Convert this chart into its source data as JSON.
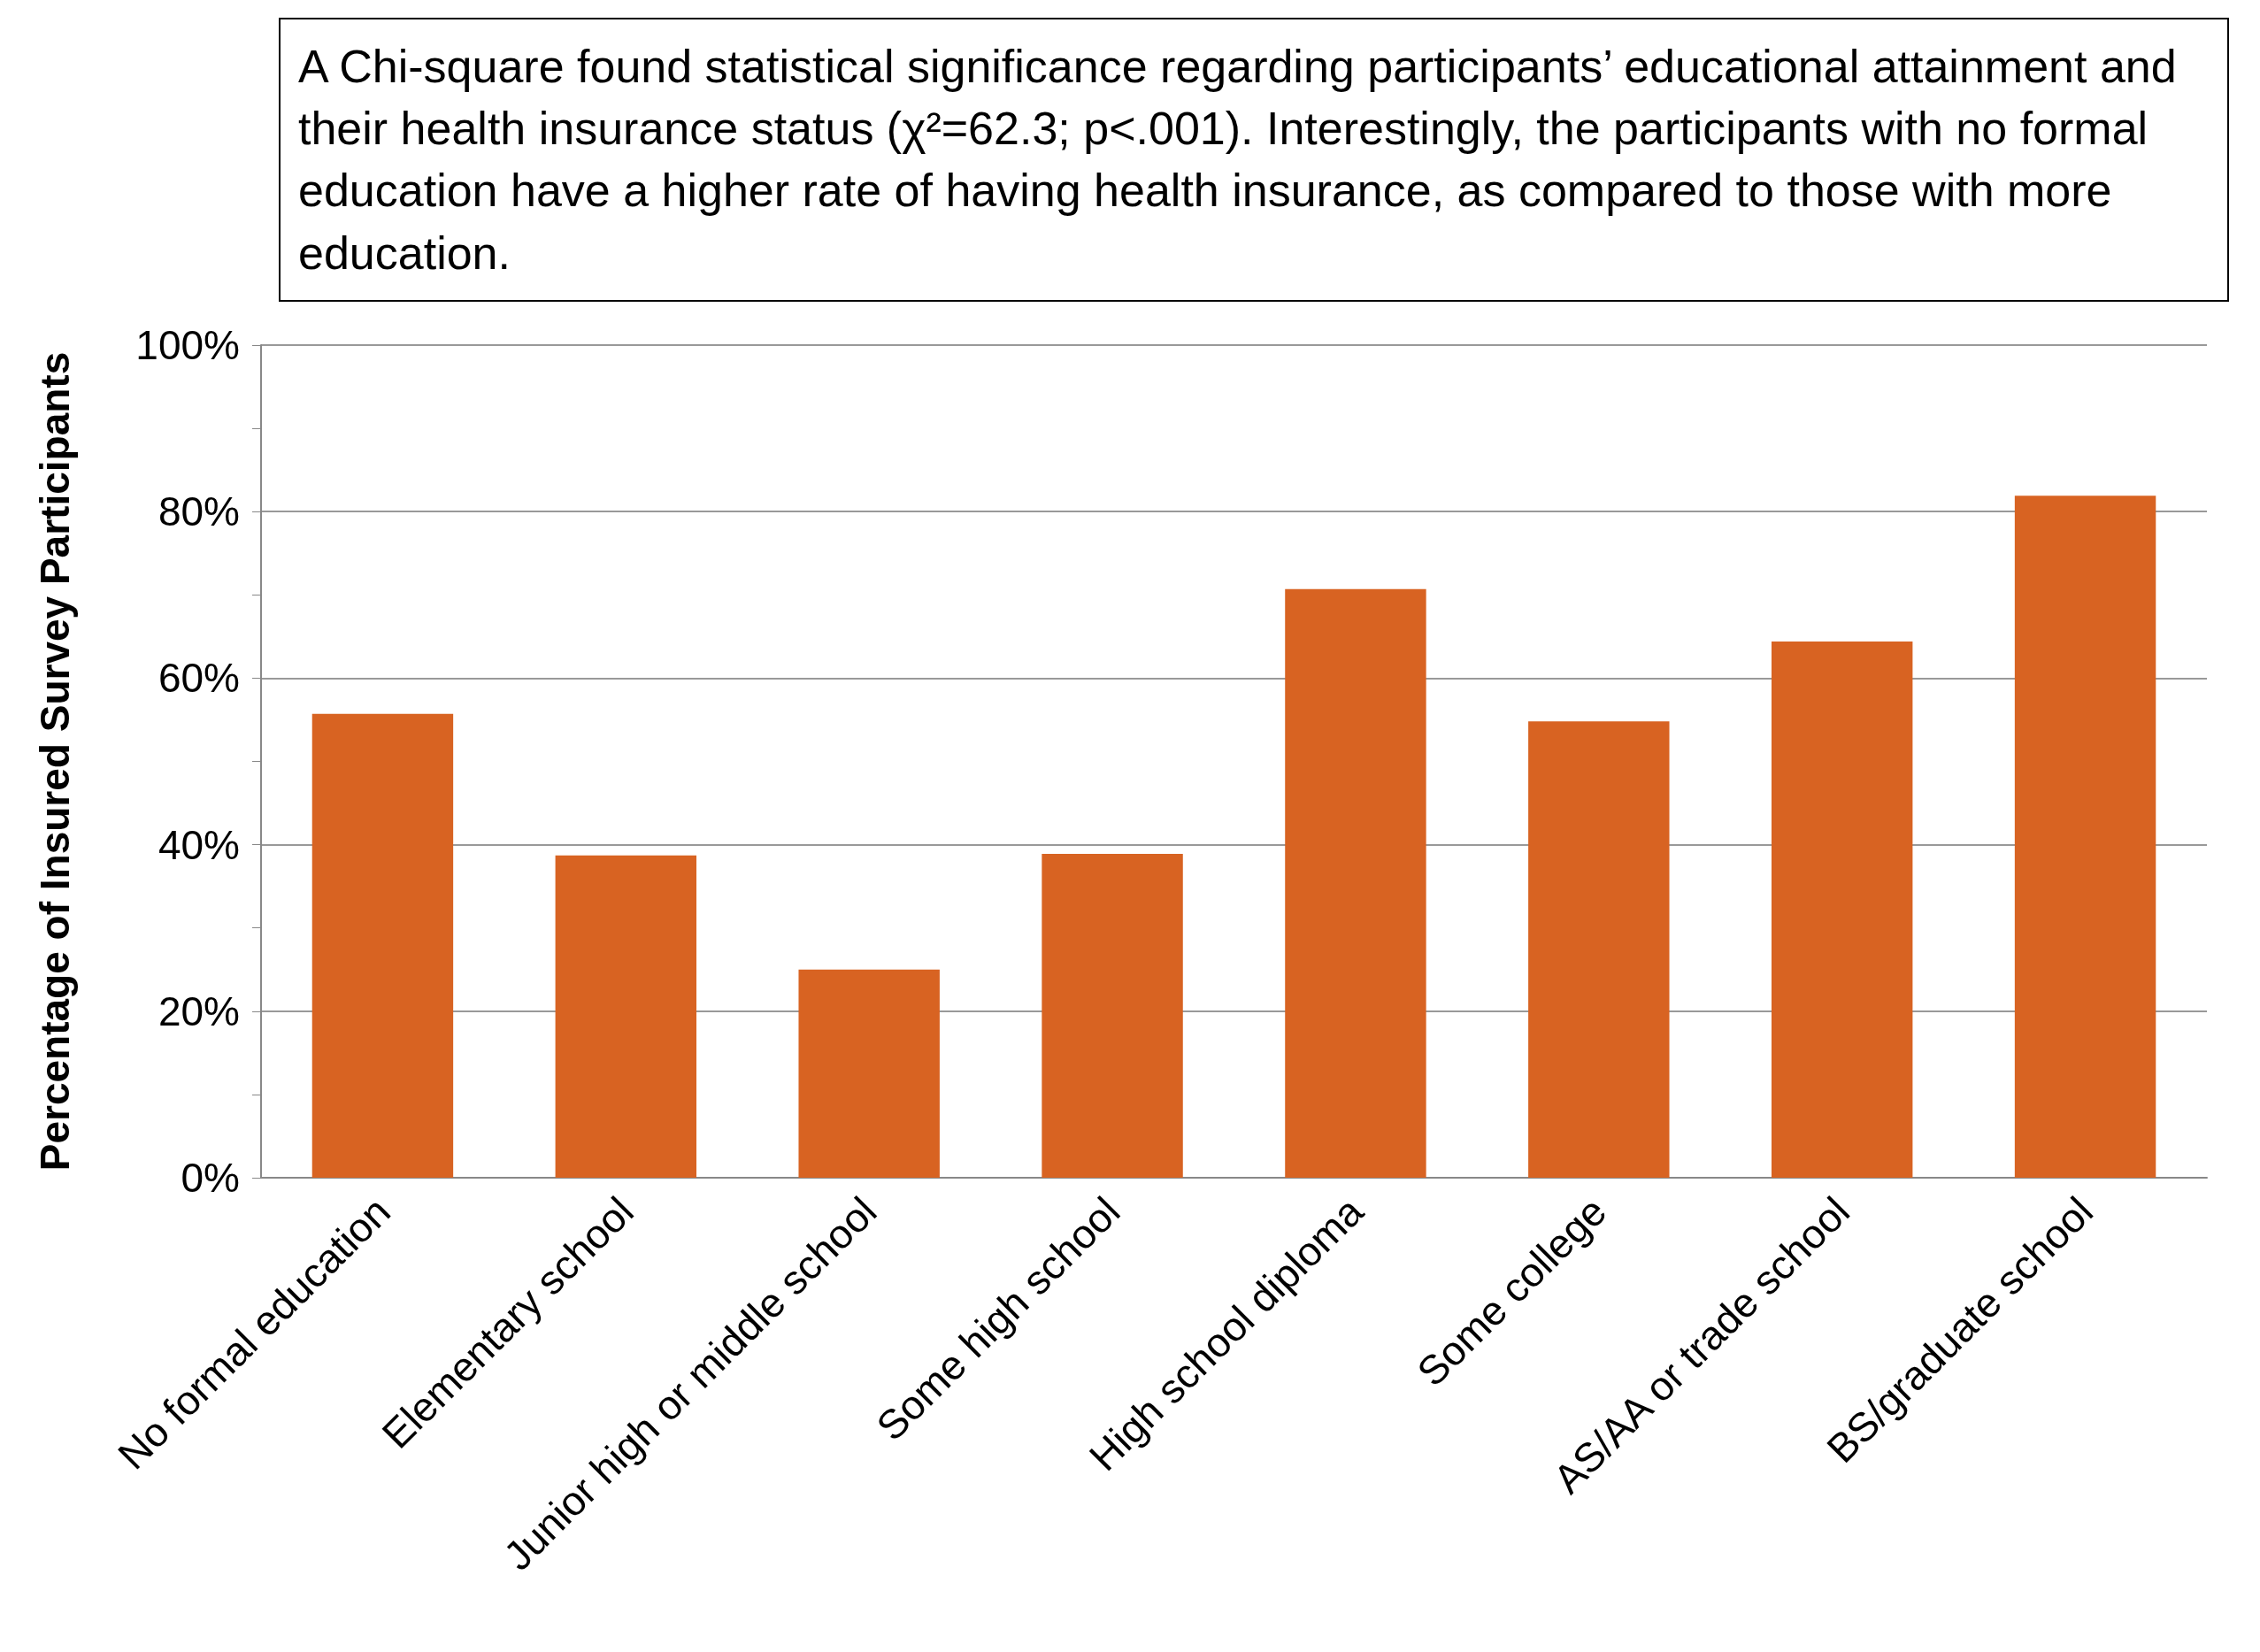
{
  "chart_data": {
    "type": "bar",
    "ylabel": "Percentage of Insured Survey Participants",
    "annotations": [
      "A Chi-square found statistical significance regarding participants’ educational attainment and their health insurance status (χ²=62.3; p<.001).  Interestingly, the participants with no formal education have a higher rate of having health insurance, as compared to those with more education."
    ],
    "categories": [
      "No formal education",
      "Elementary school",
      "Junior high or middle school",
      "Some high school",
      "High school diploma",
      "Some college",
      "AS/AA or trade school",
      "BS/graduate school"
    ],
    "values": [
      55.7,
      38.7,
      25.0,
      38.9,
      70.7,
      54.8,
      64.4,
      81.9
    ],
    "color": "#d86322",
    "ylim": [
      0,
      100
    ],
    "yticks": [
      {
        "value": 0,
        "label": "0%"
      },
      {
        "value": 20,
        "label": "20%"
      },
      {
        "value": 40,
        "label": "40%"
      },
      {
        "value": 60,
        "label": "60%"
      },
      {
        "value": 80,
        "label": "80%"
      },
      {
        "value": 100,
        "label": "100%"
      }
    ],
    "grid": "y",
    "legend": false
  }
}
